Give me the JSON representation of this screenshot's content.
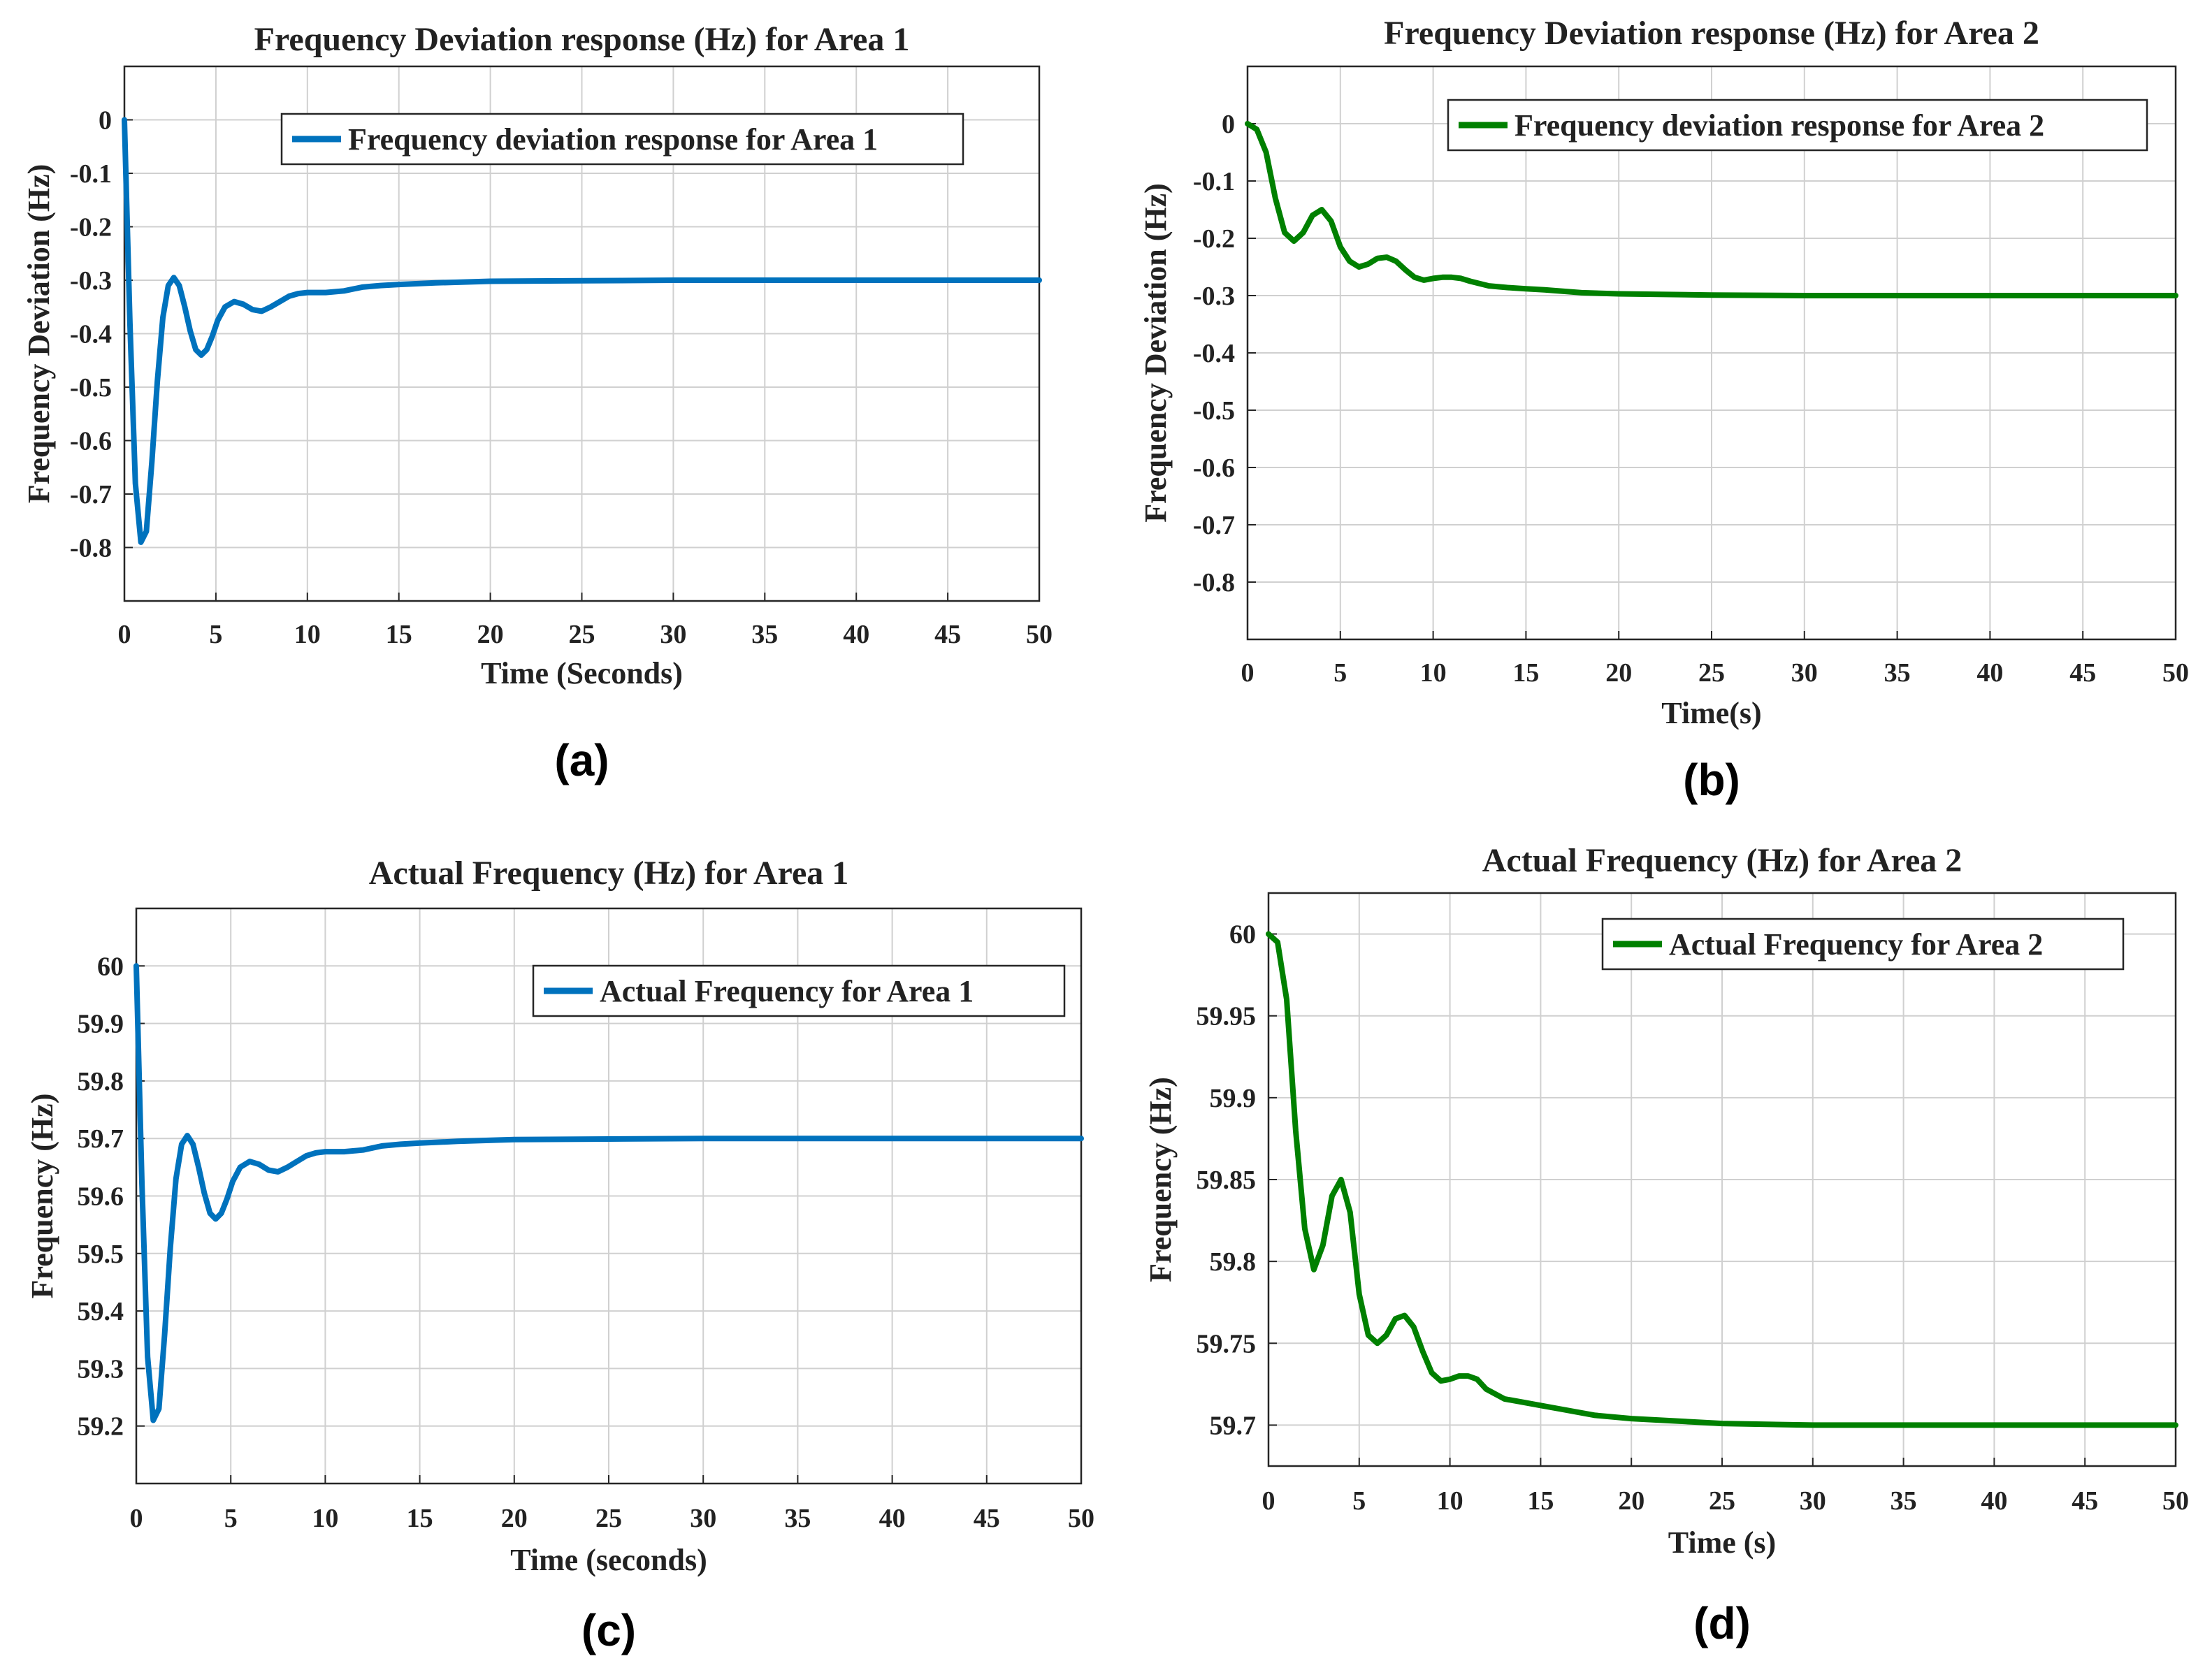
{
  "chart_data": [
    {
      "id": "a",
      "type": "line",
      "panel_label": "(a)",
      "title": "Frequency Deviation response (Hz) for Area 1",
      "xlabel": "Time (Seconds)",
      "ylabel": "Frequency Deviation (Hz)",
      "xlim": [
        0,
        50
      ],
      "ylim": [
        -0.9,
        0.1
      ],
      "xticks": [
        0,
        5,
        10,
        15,
        20,
        25,
        30,
        35,
        40,
        45,
        50
      ],
      "yticks": [
        0,
        -0.1,
        -0.2,
        -0.3,
        -0.4,
        -0.5,
        -0.6,
        -0.7,
        -0.8
      ],
      "ytick_labels": [
        "0",
        "-0.1",
        "-0.2",
        "-0.3",
        "-0.4",
        "-0.5",
        "-0.6",
        "-0.7",
        "-0.8"
      ],
      "grid": true,
      "legend_position": "top-right",
      "series": [
        {
          "name": "Frequency deviation response for Area 1",
          "color": "#0072BD",
          "x": [
            0,
            0.3,
            0.6,
            0.9,
            1.2,
            1.5,
            1.8,
            2.1,
            2.4,
            2.7,
            3.0,
            3.3,
            3.6,
            3.9,
            4.2,
            4.5,
            4.8,
            5.1,
            5.5,
            6.0,
            6.5,
            7.0,
            7.5,
            8.0,
            8.5,
            9.0,
            9.5,
            10,
            11,
            12,
            13,
            14,
            15,
            17,
            20,
            25,
            30,
            35,
            40,
            45,
            50
          ],
          "values": [
            0,
            -0.38,
            -0.68,
            -0.79,
            -0.77,
            -0.64,
            -0.49,
            -0.37,
            -0.31,
            -0.295,
            -0.31,
            -0.35,
            -0.395,
            -0.43,
            -0.44,
            -0.43,
            -0.405,
            -0.375,
            -0.35,
            -0.34,
            -0.345,
            -0.355,
            -0.358,
            -0.35,
            -0.34,
            -0.33,
            -0.325,
            -0.323,
            -0.323,
            -0.32,
            -0.313,
            -0.31,
            -0.308,
            -0.305,
            -0.302,
            -0.301,
            -0.3,
            -0.3,
            -0.3,
            -0.3,
            -0.3
          ]
        }
      ]
    },
    {
      "id": "b",
      "type": "line",
      "panel_label": "(b)",
      "title": "Frequency Deviation response (Hz) for Area 2",
      "xlabel": "Time(s)",
      "ylabel": "Frequency Deviation (Hz)",
      "xlim": [
        0,
        50
      ],
      "ylim": [
        -0.9,
        0.1
      ],
      "xticks": [
        0,
        5,
        10,
        15,
        20,
        25,
        30,
        35,
        40,
        45,
        50
      ],
      "yticks": [
        0,
        -0.1,
        -0.2,
        -0.3,
        -0.4,
        -0.5,
        -0.6,
        -0.7,
        -0.8
      ],
      "ytick_labels": [
        "0",
        "-0.1",
        "-0.2",
        "-0.3",
        "-0.4",
        "-0.5",
        "-0.6",
        "-0.7",
        "-0.8"
      ],
      "grid": true,
      "legend_position": "top-right",
      "series": [
        {
          "name": "Frequency deviation response for Area 2",
          "color": "#008000",
          "x": [
            0,
            0.5,
            1.0,
            1.5,
            2.0,
            2.5,
            3.0,
            3.5,
            4.0,
            4.5,
            5.0,
            5.5,
            6.0,
            6.5,
            7.0,
            7.5,
            8.0,
            8.5,
            9.0,
            9.5,
            10,
            10.5,
            11,
            11.5,
            12,
            13,
            14,
            15,
            16,
            18,
            20,
            25,
            30,
            35,
            40,
            45,
            50
          ],
          "values": [
            0,
            -0.01,
            -0.05,
            -0.13,
            -0.19,
            -0.205,
            -0.19,
            -0.16,
            -0.15,
            -0.17,
            -0.215,
            -0.24,
            -0.25,
            -0.245,
            -0.235,
            -0.233,
            -0.24,
            -0.255,
            -0.268,
            -0.273,
            -0.27,
            -0.268,
            -0.268,
            -0.27,
            -0.275,
            -0.283,
            -0.286,
            -0.288,
            -0.29,
            -0.295,
            -0.297,
            -0.299,
            -0.3,
            -0.3,
            -0.3,
            -0.3,
            -0.3
          ]
        }
      ]
    },
    {
      "id": "c",
      "type": "line",
      "panel_label": "(c)",
      "title": "Actual Frequency (Hz) for Area 1",
      "xlabel": "Time (seconds)",
      "ylabel": "Frequency (Hz)",
      "xlim": [
        0,
        50
      ],
      "ylim": [
        59.1,
        60.1
      ],
      "xticks": [
        0,
        5,
        10,
        15,
        20,
        25,
        30,
        35,
        40,
        45,
        50
      ],
      "yticks": [
        60,
        59.9,
        59.8,
        59.7,
        59.6,
        59.5,
        59.4,
        59.3,
        59.2
      ],
      "ytick_labels": [
        "60",
        "59.9",
        "59.8",
        "59.7",
        "59.6",
        "59.5",
        "59.4",
        "59.3",
        "59.2"
      ],
      "grid": true,
      "legend_position": "top-right",
      "series": [
        {
          "name": "Actual Frequency for Area 1",
          "color": "#0072BD",
          "x": [
            0,
            0.3,
            0.6,
            0.9,
            1.2,
            1.5,
            1.8,
            2.1,
            2.4,
            2.7,
            3.0,
            3.3,
            3.6,
            3.9,
            4.2,
            4.5,
            4.8,
            5.1,
            5.5,
            6.0,
            6.5,
            7.0,
            7.5,
            8.0,
            8.5,
            9.0,
            9.5,
            10,
            11,
            12,
            13,
            14,
            15,
            17,
            20,
            25,
            30,
            35,
            40,
            45,
            50
          ],
          "values": [
            60,
            59.62,
            59.32,
            59.21,
            59.23,
            59.36,
            59.51,
            59.63,
            59.69,
            59.705,
            59.69,
            59.65,
            59.605,
            59.57,
            59.56,
            59.57,
            59.595,
            59.625,
            59.65,
            59.66,
            59.655,
            59.645,
            59.642,
            59.65,
            59.66,
            59.67,
            59.675,
            59.677,
            59.677,
            59.68,
            59.687,
            59.69,
            59.692,
            59.695,
            59.698,
            59.699,
            59.7,
            59.7,
            59.7,
            59.7,
            59.7
          ]
        }
      ]
    },
    {
      "id": "d",
      "type": "line",
      "panel_label": "(d)",
      "title": "Actual Frequency (Hz) for Area 2",
      "xlabel": "Time (s)",
      "ylabel": "Frequency (Hz)",
      "xlim": [
        0,
        50
      ],
      "ylim": [
        59.675,
        60.025
      ],
      "xticks": [
        0,
        5,
        10,
        15,
        20,
        25,
        30,
        35,
        40,
        45,
        50
      ],
      "yticks": [
        60,
        59.95,
        59.9,
        59.85,
        59.8,
        59.75,
        59.7
      ],
      "ytick_labels": [
        "60",
        "59.95",
        "59.9",
        "59.85",
        "59.8",
        "59.75",
        "59.7"
      ],
      "grid": true,
      "legend_position": "top-right",
      "series": [
        {
          "name": "Actual Frequency for Area 2",
          "color": "#008000",
          "x": [
            0,
            0.5,
            1.0,
            1.5,
            2.0,
            2.5,
            3.0,
            3.5,
            4.0,
            4.5,
            5.0,
            5.5,
            6.0,
            6.5,
            7.0,
            7.5,
            8.0,
            8.5,
            9.0,
            9.5,
            10,
            10.5,
            11,
            11.5,
            12,
            13,
            14,
            15,
            16,
            18,
            20,
            25,
            30,
            35,
            40,
            45,
            50
          ],
          "values": [
            60,
            59.995,
            59.96,
            59.88,
            59.82,
            59.795,
            59.81,
            59.84,
            59.85,
            59.83,
            59.78,
            59.755,
            59.75,
            59.755,
            59.765,
            59.767,
            59.76,
            59.745,
            59.732,
            59.727,
            59.728,
            59.73,
            59.73,
            59.728,
            59.722,
            59.716,
            59.714,
            59.712,
            59.71,
            59.706,
            59.704,
            59.701,
            59.7,
            59.7,
            59.7,
            59.7,
            59.7
          ]
        }
      ]
    }
  ]
}
